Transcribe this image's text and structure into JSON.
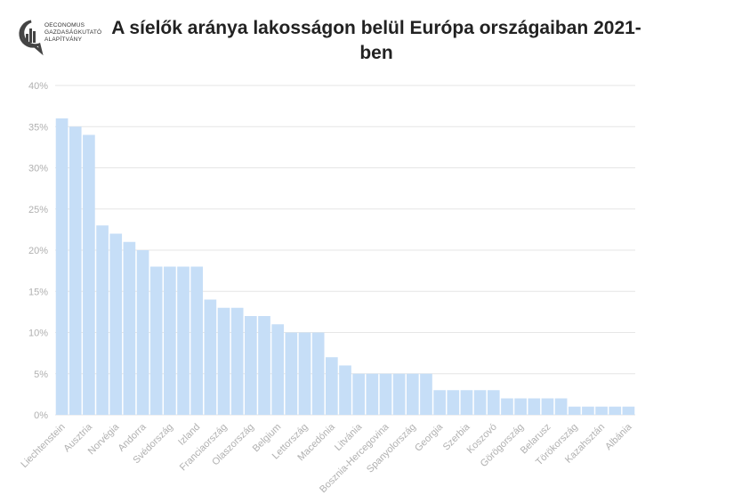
{
  "logo": {
    "lines": [
      "OECONOMUS",
      "GAZDASÁGKUTATÓ",
      "ALAPÍTVÁNY"
    ]
  },
  "chart_data": {
    "type": "bar",
    "title": "A síelők aránya lakosságon belül Európa országaiban 2021-ben",
    "xlabel": "",
    "ylabel": "",
    "ylim": [
      0,
      40
    ],
    "yticks": [
      "0%",
      "5%",
      "10%",
      "15%",
      "20%",
      "25%",
      "30%",
      "35%",
      "40%"
    ],
    "categories": [
      "Liechtenstein",
      "",
      "Ausztria",
      "",
      "Norvégia",
      "",
      "Andorra",
      "",
      "Svédország",
      "",
      "Izland",
      "",
      "Franciaország",
      "",
      "Olaszország",
      "",
      "Belgium",
      "",
      "Lettország",
      "",
      "Macedónia",
      "",
      "Litvánia",
      "",
      "Bosznia-Hercegovina",
      "",
      "Spanyolország",
      "",
      "Georgia",
      "",
      "Szerbia",
      "",
      "Koszovó",
      "",
      "Görögország",
      "",
      "Belarusz",
      "",
      "Törökország",
      "",
      "Kazahsztán",
      "",
      "Albánia"
    ],
    "values": [
      36,
      35,
      34,
      23,
      22,
      21,
      20,
      18,
      18,
      18,
      18,
      14,
      13,
      13,
      12,
      12,
      11,
      10,
      10,
      10,
      7,
      6,
      5,
      5,
      5,
      5,
      5,
      5,
      3,
      3,
      3,
      3,
      3,
      2,
      2,
      2,
      2,
      2,
      1,
      1,
      1,
      1,
      1
    ],
    "grid": true,
    "colors": {
      "bar": "#c6def7",
      "grid": "#e6e6e6",
      "tick": "#b0b0b0"
    }
  }
}
